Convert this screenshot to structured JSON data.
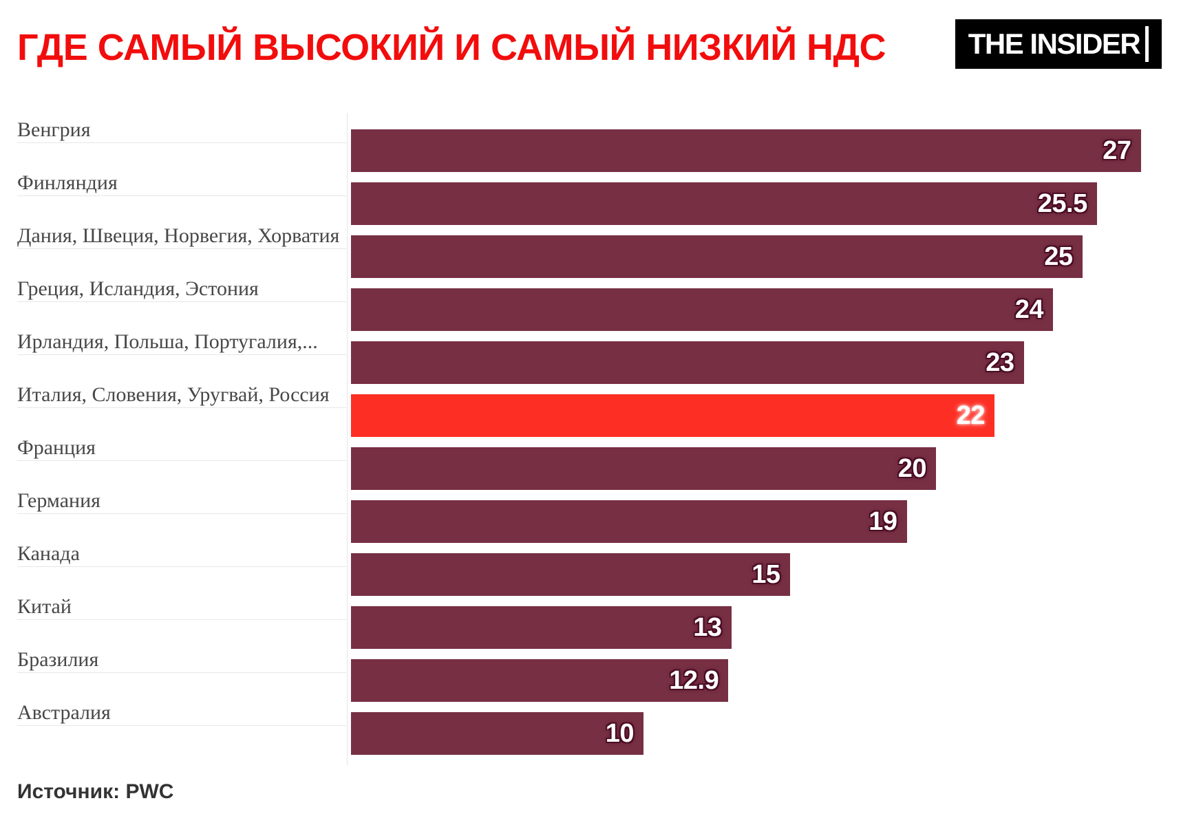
{
  "title": "ГДЕ САМЫЙ ВЫСОКИЙ И САМЫЙ НИЗКИЙ НДС",
  "title_color": "#f20d0d",
  "logo": {
    "text": "THE INSIDER",
    "bg": "#000000",
    "fg": "#ffffff"
  },
  "source": {
    "text": "Источник: PWC"
  },
  "chart_data": {
    "type": "bar",
    "orientation": "horizontal",
    "title": "ГДЕ САМЫЙ ВЫСОКИЙ И САМЫЙ НИЗКИЙ НДС",
    "xlabel": "",
    "ylabel": "",
    "xlim": [
      0,
      27
    ],
    "grid": false,
    "legend": false,
    "categories": [
      "Венгрия",
      "Финляндия",
      "Дания, Швеция, Норвегия, Хорватия",
      "Греция, Исландия, Эстония",
      "Ирландия, Польша, Португалия,...",
      "Италия, Словения, Уругвай, Россия",
      "Франция",
      "Германия",
      "Канада",
      "Китай",
      "Бразилия",
      "Австралия"
    ],
    "values": [
      27,
      25.5,
      25,
      24,
      23,
      22,
      20,
      19,
      15,
      13,
      12.9,
      10
    ],
    "value_labels": [
      "27",
      "25.5",
      "25",
      "24",
      "23",
      "22",
      "20",
      "19",
      "15",
      "13",
      "12.9",
      "10"
    ],
    "highlighted_category": "Италия, Словения, Уругвай, Россия",
    "bar_color": "#772f43",
    "highlight_color": "#fd2e24",
    "value_text_color": "#ffffff",
    "value_outline_color": "#4a0d24"
  }
}
